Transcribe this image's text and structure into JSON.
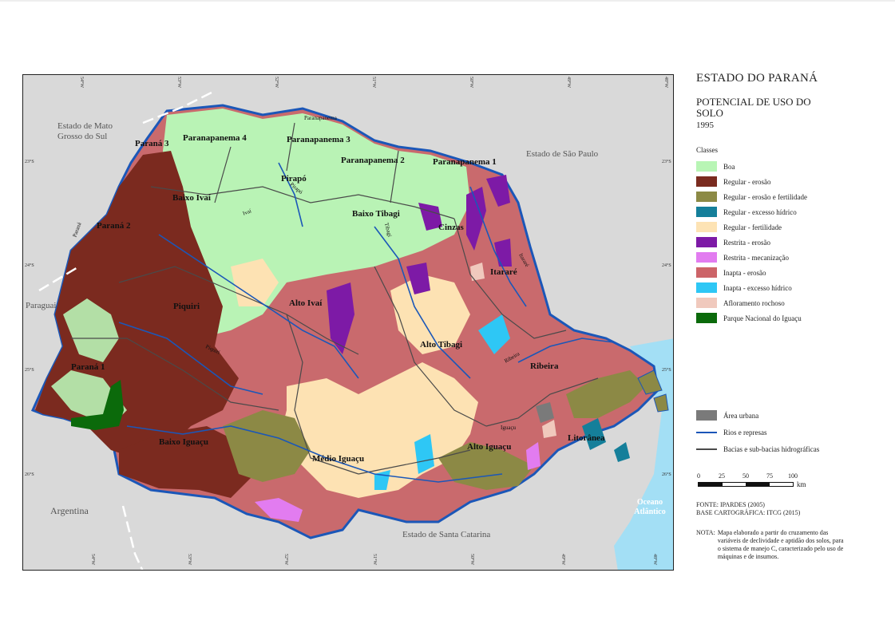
{
  "title": {
    "main": "ESTADO DO PARANÁ",
    "subtitle": "POTENCIAL DE USO DO SOLO",
    "year": "1995"
  },
  "legend": {
    "heading": "Classes",
    "classes": [
      {
        "label": "Boa",
        "color": "#b8f5b5"
      },
      {
        "label": "Regular - erosão",
        "color": "#7a2b1f"
      },
      {
        "label": "Regular - erosão e fertilidade",
        "color": "#8c8a45"
      },
      {
        "label": "Regular - excesso hídrico",
        "color": "#157f9a"
      },
      {
        "label": "Regular - fertilidade",
        "color": "#fde3b4"
      },
      {
        "label": "Restrita - erosão",
        "color": "#7d1aa6"
      },
      {
        "label": "Restrita - mecanização",
        "color": "#e27cf0"
      },
      {
        "label": "Inapta - erosão",
        "color": "#cc6468"
      },
      {
        "label": "Inapta - excesso hídrico",
        "color": "#2ec7f5"
      },
      {
        "label": "Afloramento rochoso",
        "color": "#f0c9bd"
      },
      {
        "label": "Parque Nacional do Iguaçu",
        "color": "#0b6a0b"
      }
    ],
    "extras": [
      {
        "label": "Área urbana",
        "color": "#7a7a7a",
        "kind": "box"
      },
      {
        "label": "Rios e represas",
        "color": "#1a55b8",
        "kind": "line"
      },
      {
        "label": "Bacias e sub-bacias hidrográficas",
        "color": "#4a4a4a",
        "kind": "line"
      }
    ]
  },
  "scale": {
    "ticks": [
      "0",
      "25",
      "50",
      "75",
      "100"
    ],
    "unit": "km"
  },
  "source": {
    "fonte": "FONTE: IPARDES (2005)",
    "base": "BASE CARTOGRÁFICA: ITCG (2015)"
  },
  "note": {
    "label": "NOTA:",
    "text": "Mapa elaborado a partir do cruzamento das variáveis de declividade e aptidão dos solos, para o sistema de manejo C, caracterizado pelo uso de máquinas e de insumos."
  },
  "map": {
    "neighbors": {
      "mato_grosso": "Estado de Mato Grosso do Sul",
      "sao_paulo": "Estado de São Paulo",
      "paraguai": "Paraguai",
      "argentina": "Argentina",
      "santa_catarina": "Estado de Santa Catarina",
      "ocean": "Oceano Atlântico"
    },
    "regions": {
      "parana3": "Paraná 3",
      "paranapanema4": "Paranapanema 4",
      "paranapanema3": "Paranapanema 3",
      "paranapanema2": "Paranapanema 2",
      "paranapanema1": "Paranapanema 1",
      "pirapo": "Pirapó",
      "baixo_ivai": "Baixo Ivaí",
      "parana2": "Paraná 2",
      "baixo_tibagi": "Baixo Tibagi",
      "cinzas": "Cinzas",
      "itarare": "Itararé",
      "piquiri": "Piquiri",
      "alto_ivai": "Alto Ivaí",
      "alto_tibagi": "Alto Tibagi",
      "parana1": "Paraná 1",
      "ribeira": "Ribeira",
      "baixo_iguacu": "Baixo Iguaçu",
      "medio_iguacu": "Médio Iguaçu",
      "alto_iguacu": "Alto Iguaçu",
      "litoranea": "Litorânea"
    },
    "rivers": {
      "paranapanema": "Paranapanema",
      "parana": "Paraná",
      "ivai": "Ivaí",
      "piquiri": "Piquiri",
      "tibagi": "Tibagi",
      "itarare": "Itararé",
      "ribeira": "Ribeira",
      "iguacu": "Iguaçu",
      "pirapo": "Pirapó"
    },
    "coords_top": [
      "54°W",
      "53°W",
      "52°W",
      "51°W",
      "50°W",
      "49°W",
      "48°W"
    ],
    "coords_bottom": [
      "54°W",
      "53°W",
      "52°W",
      "51°W",
      "50°W",
      "49°W",
      "48°W"
    ],
    "coords_left": [
      "23°S",
      "24°S",
      "25°S",
      "26°S"
    ],
    "coords_right": [
      "23°S",
      "24°S",
      "25°S",
      "26°S"
    ]
  }
}
